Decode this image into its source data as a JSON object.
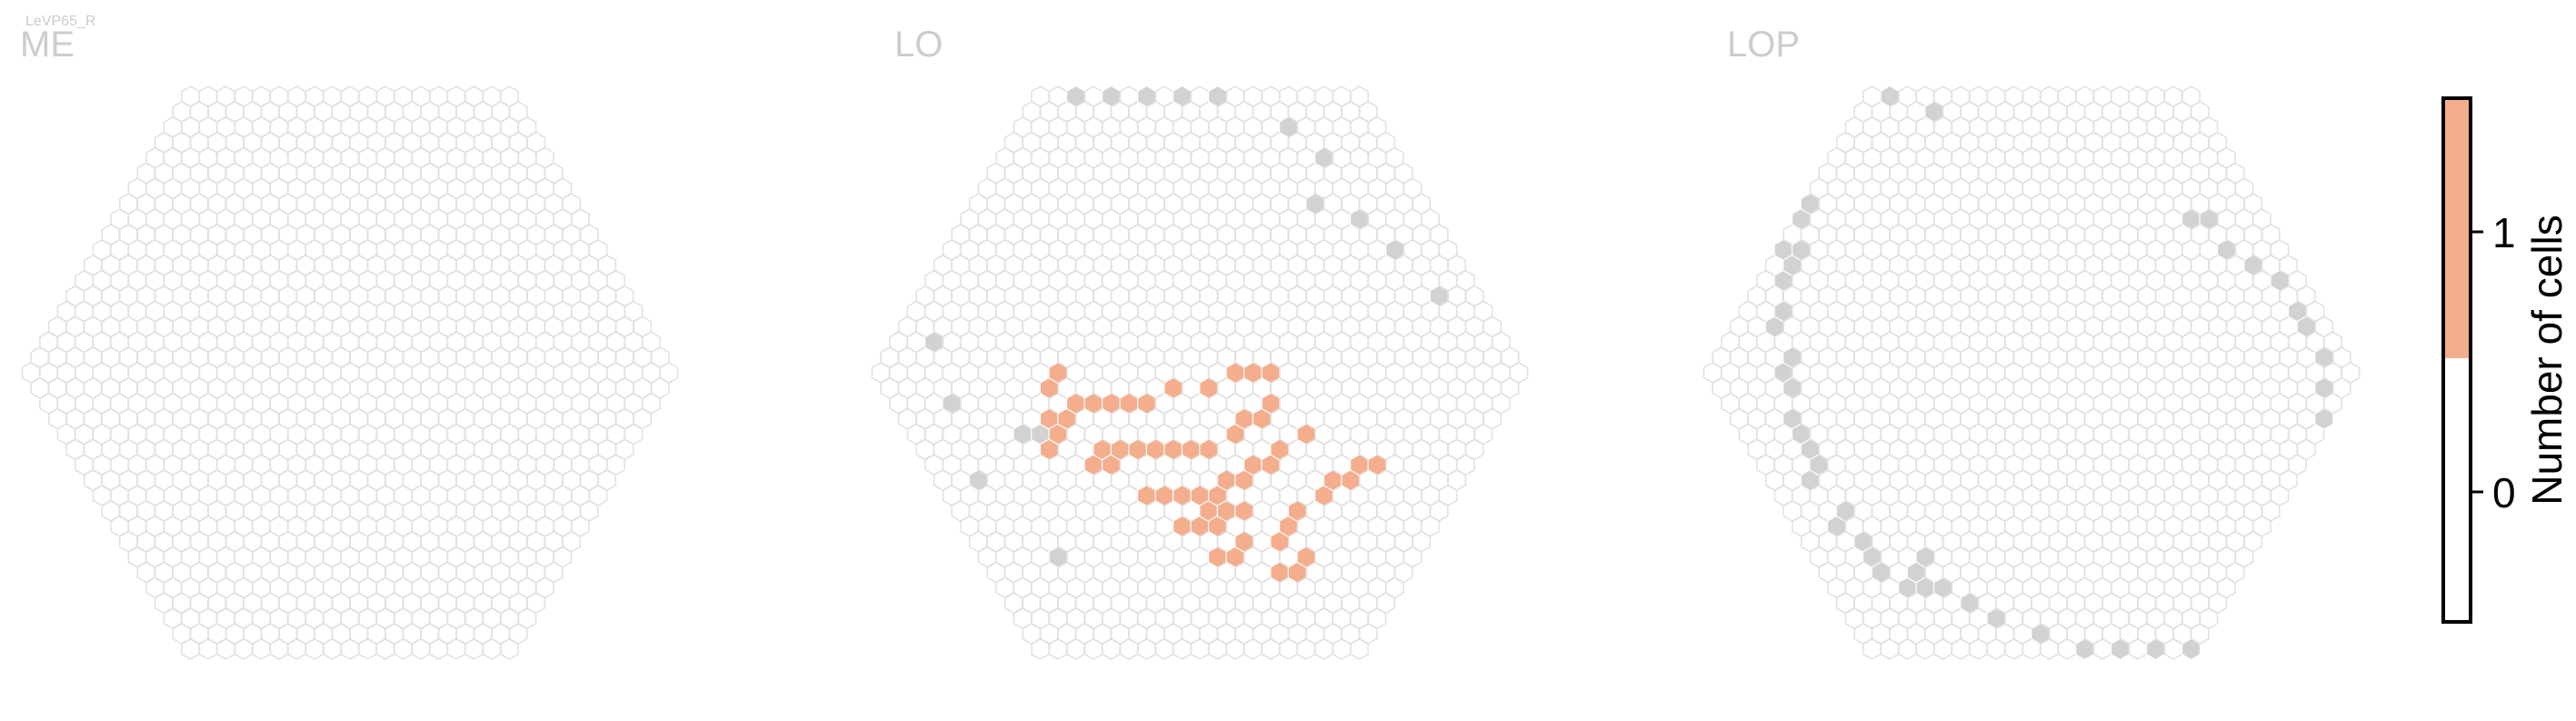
{
  "figure_tag": "LeVP65_R",
  "chart_data": {
    "type": "heatmap",
    "panels": [
      {
        "title": "ME",
        "grid": {
          "radius": 18,
          "cell_size": 19.5
        },
        "gray_cells": [],
        "count1_cells": []
      },
      {
        "title": "LO",
        "grid": {
          "radius": 18,
          "cell_size": 19.5
        },
        "gray_cells": [
          [
            -14,
            -2
          ],
          [
            -15,
            2
          ],
          [
            -16,
            7
          ],
          [
            -14,
            12
          ],
          [
            -12,
            4
          ],
          [
            -11,
            4
          ],
          [
            12,
            -11
          ],
          [
            14,
            -10
          ],
          [
            15,
            -8
          ],
          [
            16,
            -5
          ],
          [
            10,
            -18
          ],
          [
            8,
            -18
          ],
          [
            6,
            -18
          ],
          [
            4,
            -18
          ],
          [
            2,
            -18
          ],
          [
            13,
            -16
          ],
          [
            14,
            -14
          ],
          [
            5,
            17
          ],
          [
            8,
            16
          ]
        ],
        "count1_cells": [
          [
            -9,
            1
          ],
          [
            -8,
            0
          ],
          [
            -10,
            3
          ],
          [
            -10,
            4
          ],
          [
            -11,
            5
          ],
          [
            -9,
            3
          ],
          [
            -8,
            2
          ],
          [
            -7,
            2
          ],
          [
            -6,
            2
          ],
          [
            -5,
            2
          ],
          [
            -4,
            2
          ],
          [
            -2,
            1
          ],
          [
            0,
            1
          ],
          [
            2,
            0
          ],
          [
            3,
            0
          ],
          [
            4,
            0
          ],
          [
            -9,
            6
          ],
          [
            -8,
            6
          ],
          [
            -7,
            5
          ],
          [
            -6,
            5
          ],
          [
            -5,
            5
          ],
          [
            -4,
            5
          ],
          [
            -3,
            5
          ],
          [
            -2,
            5
          ],
          [
            0,
            4
          ],
          [
            1,
            3
          ],
          [
            2,
            3
          ],
          [
            3,
            2
          ],
          [
            -5,
            8
          ],
          [
            -4,
            8
          ],
          [
            -3,
            8
          ],
          [
            -2,
            7
          ],
          [
            -1,
            7
          ],
          [
            0,
            6
          ],
          [
            1,
            6
          ],
          [
            2,
            5
          ],
          [
            4,
            4
          ],
          [
            -4,
            9
          ],
          [
            -3,
            9
          ],
          [
            -2,
            9
          ],
          [
            -6,
            10
          ],
          [
            -5,
            10
          ],
          [
            -4,
            10
          ],
          [
            -3,
            11
          ],
          [
            -1,
            11
          ],
          [
            0,
            10
          ],
          [
            1,
            9
          ],
          [
            3,
            8
          ],
          [
            4,
            7
          ],
          [
            5,
            7
          ],
          [
            6,
            6
          ],
          [
            7,
            6
          ],
          [
            -8,
            5
          ],
          [
            -7,
            8
          ],
          [
            -6,
            8
          ],
          [
            -5,
            12
          ],
          [
            -4,
            12
          ],
          [
            -2,
            13
          ],
          [
            -1,
            13
          ],
          [
            0,
            12
          ]
        ]
      },
      {
        "title": "LOP",
        "grid": {
          "radius": 18,
          "cell_size": 19.5
        },
        "gray_cells": [
          [
            -16,
            7
          ],
          [
            -15,
            6
          ],
          [
            -15,
            5
          ],
          [
            -15,
            4
          ],
          [
            -15,
            3
          ],
          [
            -14,
            1
          ],
          [
            -14,
            0
          ],
          [
            -13,
            -1
          ],
          [
            -13,
            -3
          ],
          [
            -12,
            -4
          ],
          [
            -11,
            -6
          ],
          [
            -10,
            -7
          ],
          [
            -10,
            -8
          ],
          [
            -9,
            -8
          ],
          [
            -8,
            -10
          ],
          [
            -7,
            -11
          ],
          [
            -6,
            -14
          ],
          [
            -5,
            -15
          ],
          [
            -3,
            -17
          ],
          [
            -1,
            -18
          ],
          [
            1,
            -18
          ],
          [
            3,
            -17
          ],
          [
            14,
            -10
          ],
          [
            15,
            -10
          ],
          [
            15,
            -8
          ],
          [
            16,
            -7
          ],
          [
            17,
            -6
          ],
          [
            17,
            -4
          ],
          [
            17,
            -3
          ],
          [
            17,
            -1
          ],
          [
            16,
            1
          ],
          [
            15,
            3
          ],
          [
            14,
            6
          ],
          [
            14,
            8
          ],
          [
            13,
            9
          ],
          [
            13,
            10
          ],
          [
            12,
            12
          ],
          [
            11,
            13
          ],
          [
            10,
            15
          ],
          [
            9,
            16
          ],
          [
            5,
            17
          ],
          [
            2,
            17
          ],
          [
            0,
            18
          ],
          [
            -2,
            18
          ],
          [
            -4,
            18
          ],
          [
            -6,
            18
          ],
          [
            -8,
            17
          ],
          [
            -10,
            16
          ],
          [
            -11,
            15
          ],
          [
            -12,
            14
          ],
          [
            -13,
            14
          ],
          [
            -14,
            14
          ],
          [
            -15,
            13
          ],
          [
            -15,
            12
          ],
          [
            -15,
            11
          ],
          [
            -16,
            10
          ],
          [
            -15,
            9
          ],
          [
            -13,
            13
          ],
          [
            -12,
            12
          ]
        ],
        "count1_cells": []
      }
    ],
    "colorbar": {
      "label": "Number of cells",
      "ticks": [
        "0",
        "1"
      ],
      "tick_values": [
        0,
        1
      ],
      "range": [
        -0.5,
        1.5
      ],
      "colors": [
        {
          "value": 0,
          "color": "#ffffff"
        },
        {
          "value": 1,
          "color": "#f4ae8d"
        }
      ]
    },
    "colors": {
      "grid_stroke": "#e2e2e2",
      "gray_cell": "#d2d2d2",
      "count1_cell": "#f4ae8d"
    }
  }
}
